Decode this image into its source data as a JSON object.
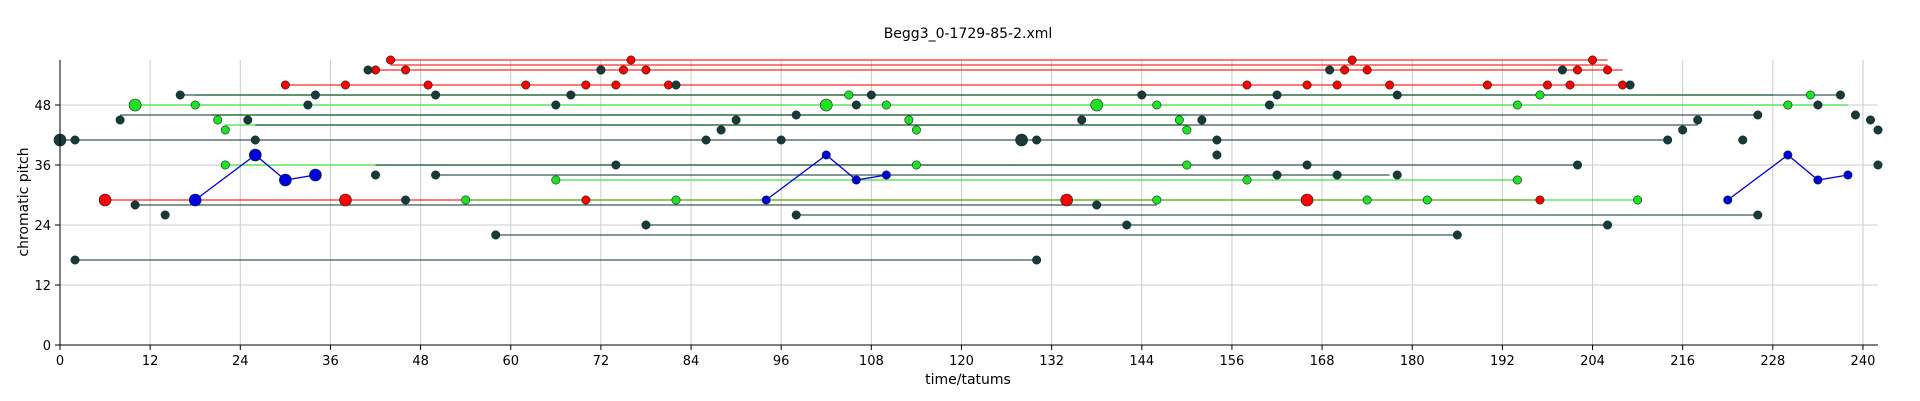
{
  "chart_data": {
    "type": "scatter",
    "title": "Begg3_0-1729-85-2.xml",
    "xlabel": "time/tatums",
    "ylabel": "chromatic pitch",
    "xlim": [
      0,
      242
    ],
    "ylim": [
      0,
      57
    ],
    "xticks": [
      0,
      12,
      24,
      36,
      48,
      60,
      72,
      84,
      96,
      108,
      120,
      132,
      144,
      156,
      168,
      180,
      192,
      204,
      216,
      228,
      240
    ],
    "yticks": [
      0,
      12,
      24,
      36,
      48
    ],
    "grid": true,
    "series": [
      {
        "color": "#ff0000",
        "segments": [
          {
            "x": [
              30,
              208
            ],
            "y": 52
          },
          {
            "x": [
              41,
              208
            ],
            "y": 55
          },
          {
            "x": [
              44,
              206
            ],
            "y": 57
          },
          {
            "x": [
              44,
              206
            ],
            "y": 56
          },
          {
            "x": [
              6,
              197
            ],
            "y": 29
          }
        ],
        "points": [
          {
            "x": 30,
            "y": 52
          },
          {
            "x": 38,
            "y": 52
          },
          {
            "x": 42,
            "y": 55
          },
          {
            "x": 44,
            "y": 57
          },
          {
            "x": 46,
            "y": 55
          },
          {
            "x": 49,
            "y": 52
          },
          {
            "x": 62,
            "y": 52
          },
          {
            "x": 70,
            "y": 52
          },
          {
            "x": 72,
            "y": 55
          },
          {
            "x": 74,
            "y": 52
          },
          {
            "x": 75,
            "y": 55
          },
          {
            "x": 76,
            "y": 57
          },
          {
            "x": 78,
            "y": 55
          },
          {
            "x": 81,
            "y": 52
          },
          {
            "x": 158,
            "y": 52
          },
          {
            "x": 166,
            "y": 52
          },
          {
            "x": 171,
            "y": 55
          },
          {
            "x": 172,
            "y": 57
          },
          {
            "x": 174,
            "y": 55
          },
          {
            "x": 170,
            "y": 52
          },
          {
            "x": 177,
            "y": 52
          },
          {
            "x": 190,
            "y": 52
          },
          {
            "x": 198,
            "y": 52
          },
          {
            "x": 202,
            "y": 55
          },
          {
            "x": 204,
            "y": 57
          },
          {
            "x": 206,
            "y": 55
          },
          {
            "x": 201,
            "y": 52
          },
          {
            "x": 208,
            "y": 52
          },
          {
            "x": 6,
            "y": 29,
            "size": "large"
          },
          {
            "x": 38,
            "y": 29,
            "size": "large"
          },
          {
            "x": 70,
            "y": 29
          },
          {
            "x": 134,
            "y": 29,
            "size": "large"
          },
          {
            "x": 166,
            "y": 29,
            "size": "large"
          },
          {
            "x": 197,
            "y": 29
          }
        ]
      },
      {
        "color": "#22e022",
        "segments": [
          {
            "x": [
              10,
              238
            ],
            "y": 48
          },
          {
            "x": [
              18,
              228
            ],
            "y": 50
          },
          {
            "x": [
              20,
              150
            ],
            "y": 46
          },
          {
            "x": [
              22,
              150
            ],
            "y": 44
          },
          {
            "x": [
              22,
              150
            ],
            "y": 36
          },
          {
            "x": [
              66,
              194
            ],
            "y": 33
          },
          {
            "x": [
              54,
              210
            ],
            "y": 29
          }
        ],
        "points": [
          {
            "x": 10,
            "y": 48,
            "size": "large"
          },
          {
            "x": 18,
            "y": 48
          },
          {
            "x": 21,
            "y": 45
          },
          {
            "x": 22,
            "y": 43
          },
          {
            "x": 22,
            "y": 36
          },
          {
            "x": 54,
            "y": 29
          },
          {
            "x": 66,
            "y": 33
          },
          {
            "x": 82,
            "y": 29
          },
          {
            "x": 105,
            "y": 50
          },
          {
            "x": 102,
            "y": 48,
            "size": "large"
          },
          {
            "x": 110,
            "y": 48
          },
          {
            "x": 113,
            "y": 45
          },
          {
            "x": 114,
            "y": 43
          },
          {
            "x": 114,
            "y": 36
          },
          {
            "x": 138,
            "y": 48,
            "size": "large"
          },
          {
            "x": 146,
            "y": 48
          },
          {
            "x": 149,
            "y": 45
          },
          {
            "x": 150,
            "y": 43
          },
          {
            "x": 150,
            "y": 36
          },
          {
            "x": 146,
            "y": 29
          },
          {
            "x": 158,
            "y": 33
          },
          {
            "x": 174,
            "y": 29
          },
          {
            "x": 182,
            "y": 29
          },
          {
            "x": 194,
            "y": 48
          },
          {
            "x": 197,
            "y": 50
          },
          {
            "x": 194,
            "y": 33
          },
          {
            "x": 210,
            "y": 29
          },
          {
            "x": 230,
            "y": 48
          },
          {
            "x": 233,
            "y": 50
          }
        ]
      },
      {
        "color": "#0000dd",
        "segments": [],
        "points": [
          {
            "x": 18,
            "y": 29,
            "size": "large"
          },
          {
            "x": 26,
            "y": 38,
            "size": "large"
          },
          {
            "x": 30,
            "y": 33,
            "size": "large"
          },
          {
            "x": 34,
            "y": 34,
            "size": "large"
          },
          {
            "x": 94,
            "y": 29
          },
          {
            "x": 102,
            "y": 38
          },
          {
            "x": 106,
            "y": 33
          },
          {
            "x": 110,
            "y": 34
          },
          {
            "x": 222,
            "y": 29
          },
          {
            "x": 230,
            "y": 38
          },
          {
            "x": 234,
            "y": 33
          },
          {
            "x": 238,
            "y": 34
          }
        ],
        "polylines": [
          [
            {
              "x": 18,
              "y": 29
            },
            {
              "x": 26,
              "y": 38
            },
            {
              "x": 30,
              "y": 33
            },
            {
              "x": 34,
              "y": 34
            }
          ],
          [
            {
              "x": 94,
              "y": 29
            },
            {
              "x": 102,
              "y": 38
            },
            {
              "x": 106,
              "y": 33
            },
            {
              "x": 110,
              "y": 34
            }
          ],
          [
            {
              "x": 222,
              "y": 29
            },
            {
              "x": 230,
              "y": 38
            },
            {
              "x": 234,
              "y": 33
            },
            {
              "x": 238,
              "y": 34
            }
          ]
        ]
      },
      {
        "color": "#1a3a3a",
        "segments": [
          {
            "x": [
              16,
              237
            ],
            "y": 50
          },
          {
            "x": [
              0,
              214
            ],
            "y": 41
          },
          {
            "x": [
              2,
              130
            ],
            "y": 17
          },
          {
            "x": [
              8,
              226
            ],
            "y": 46
          },
          {
            "x": [
              26,
              218
            ],
            "y": 44
          },
          {
            "x": [
              42,
              202
            ],
            "y": 36
          },
          {
            "x": [
              50,
              177
            ],
            "y": 34
          },
          {
            "x": [
              58,
              186
            ],
            "y": 22
          },
          {
            "x": [
              78,
              206
            ],
            "y": 24
          },
          {
            "x": [
              98,
              226
            ],
            "y": 26
          },
          {
            "x": [
              10,
              146
            ],
            "y": 28
          }
        ],
        "points": [
          {
            "x": 0,
            "y": 41,
            "size": "large"
          },
          {
            "x": 2,
            "y": 41
          },
          {
            "x": 2,
            "y": 17
          },
          {
            "x": 8,
            "y": 45
          },
          {
            "x": 10,
            "y": 28
          },
          {
            "x": 14,
            "y": 26
          },
          {
            "x": 16,
            "y": 50
          },
          {
            "x": 25,
            "y": 45
          },
          {
            "x": 26,
            "y": 41
          },
          {
            "x": 33,
            "y": 48
          },
          {
            "x": 34,
            "y": 50
          },
          {
            "x": 41,
            "y": 55
          },
          {
            "x": 42,
            "y": 34
          },
          {
            "x": 46,
            "y": 29
          },
          {
            "x": 50,
            "y": 50
          },
          {
            "x": 50,
            "y": 34
          },
          {
            "x": 58,
            "y": 22
          },
          {
            "x": 66,
            "y": 48
          },
          {
            "x": 68,
            "y": 50
          },
          {
            "x": 72,
            "y": 55
          },
          {
            "x": 74,
            "y": 36
          },
          {
            "x": 78,
            "y": 24
          },
          {
            "x": 82,
            "y": 52
          },
          {
            "x": 86,
            "y": 41
          },
          {
            "x": 88,
            "y": 43
          },
          {
            "x": 90,
            "y": 45
          },
          {
            "x": 96,
            "y": 41
          },
          {
            "x": 98,
            "y": 46
          },
          {
            "x": 98,
            "y": 26
          },
          {
            "x": 106,
            "y": 48
          },
          {
            "x": 108,
            "y": 50
          },
          {
            "x": 128,
            "y": 41,
            "size": "large"
          },
          {
            "x": 130,
            "y": 41
          },
          {
            "x": 130,
            "y": 17
          },
          {
            "x": 138,
            "y": 28
          },
          {
            "x": 142,
            "y": 24
          },
          {
            "x": 144,
            "y": 50
          },
          {
            "x": 136,
            "y": 45
          },
          {
            "x": 152,
            "y": 45
          },
          {
            "x": 154,
            "y": 41
          },
          {
            "x": 154,
            "y": 38
          },
          {
            "x": 161,
            "y": 48
          },
          {
            "x": 162,
            "y": 50
          },
          {
            "x": 162,
            "y": 34
          },
          {
            "x": 166,
            "y": 36
          },
          {
            "x": 169,
            "y": 55
          },
          {
            "x": 170,
            "y": 34
          },
          {
            "x": 178,
            "y": 50
          },
          {
            "x": 178,
            "y": 34
          },
          {
            "x": 186,
            "y": 22
          },
          {
            "x": 200,
            "y": 55
          },
          {
            "x": 202,
            "y": 36
          },
          {
            "x": 206,
            "y": 24
          },
          {
            "x": 209,
            "y": 52
          },
          {
            "x": 214,
            "y": 41
          },
          {
            "x": 216,
            "y": 43
          },
          {
            "x": 218,
            "y": 45
          },
          {
            "x": 224,
            "y": 41
          },
          {
            "x": 226,
            "y": 46
          },
          {
            "x": 226,
            "y": 26
          },
          {
            "x": 234,
            "y": 48
          },
          {
            "x": 237,
            "y": 50
          },
          {
            "x": 239,
            "y": 46
          },
          {
            "x": 241,
            "y": 45
          },
          {
            "x": 242,
            "y": 43
          },
          {
            "x": 242,
            "y": 36
          }
        ]
      }
    ]
  }
}
